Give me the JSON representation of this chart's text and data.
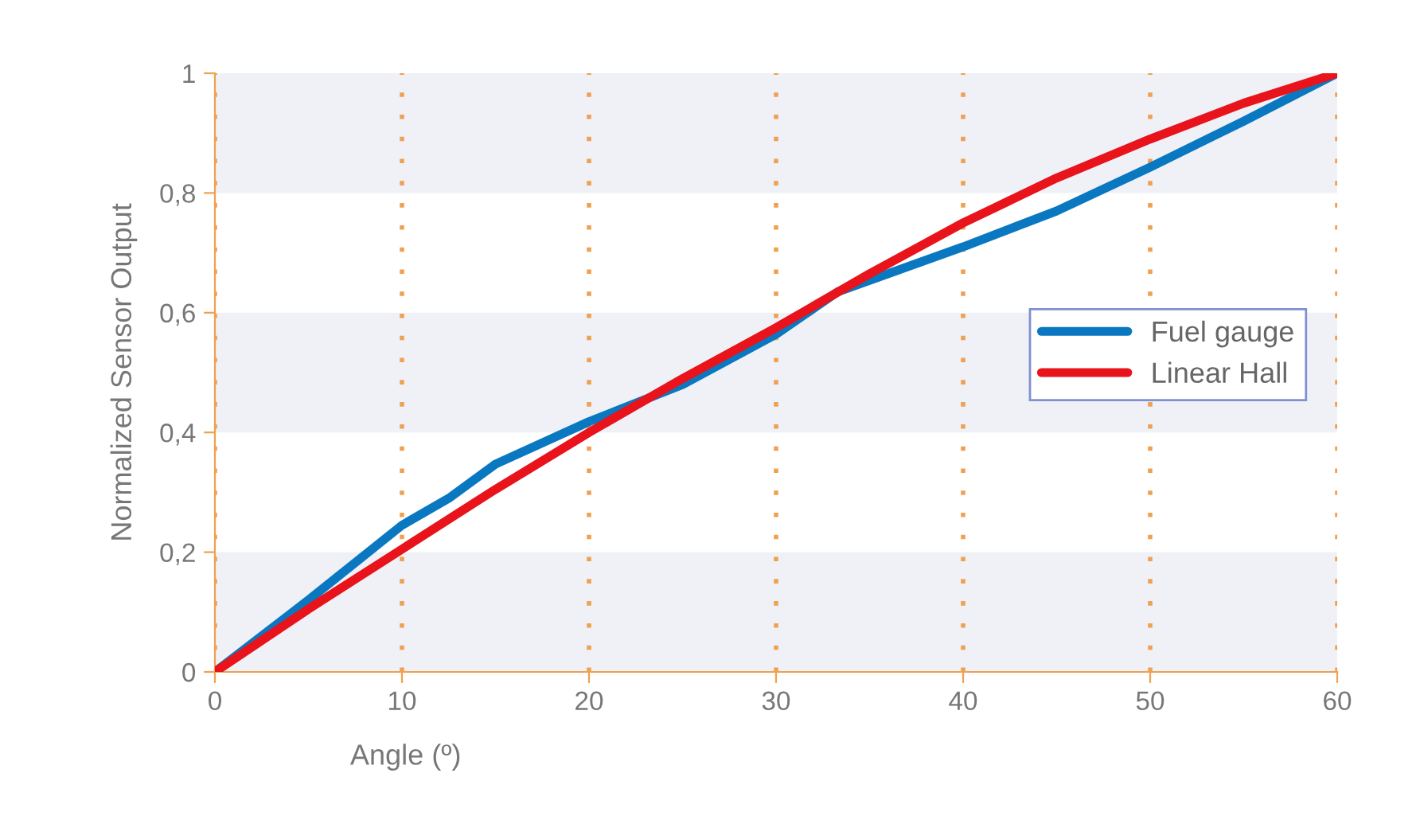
{
  "chart_data": {
    "type": "line",
    "xlabel": "Angle (º)",
    "ylabel": "Normalized Sensor Output",
    "xlim": [
      0,
      60
    ],
    "xticks": [
      0,
      10,
      20,
      30,
      40,
      50,
      60
    ],
    "ylim": [
      0,
      1
    ],
    "yticks": [
      {
        "value": 0,
        "label": "0"
      },
      {
        "value": 0.2,
        "label": "0,2"
      },
      {
        "value": 0.4,
        "label": "0,4"
      },
      {
        "value": 0.6,
        "label": "0,6"
      },
      {
        "value": 0.8,
        "label": "0,8"
      },
      {
        "value": 1,
        "label": "1"
      }
    ],
    "grid": "x",
    "legend": "right",
    "line_style": "solid",
    "marker": "none",
    "bands": [
      {
        "axis": "y",
        "from": 0,
        "to": 0.2,
        "color": "#eff1f7"
      },
      {
        "axis": "y",
        "from": 0.4,
        "to": 0.6,
        "color": "#eff1f7"
      },
      {
        "axis": "y",
        "from": 0.8,
        "to": 1,
        "color": "#eff1f7"
      }
    ],
    "series": [
      {
        "name": "Fuel gauge",
        "color": "#0a78c0",
        "x": [
          0,
          5,
          10,
          12.5,
          15,
          20,
          25,
          30,
          33.3,
          40,
          45,
          50,
          55,
          60
        ],
        "values": [
          0,
          0.12,
          0.245,
          0.29,
          0.347,
          0.418,
          0.48,
          0.564,
          0.635,
          0.71,
          0.77,
          0.843,
          0.92,
          1.0
        ]
      },
      {
        "name": "Linear Hall",
        "color": "#e8131b",
        "x": [
          0,
          5,
          10,
          15,
          20,
          25,
          30,
          35,
          40,
          45,
          50,
          55,
          60
        ],
        "values": [
          0,
          0.105,
          0.205,
          0.305,
          0.4,
          0.49,
          0.575,
          0.665,
          0.75,
          0.825,
          0.89,
          0.95,
          1.0
        ]
      }
    ]
  }
}
